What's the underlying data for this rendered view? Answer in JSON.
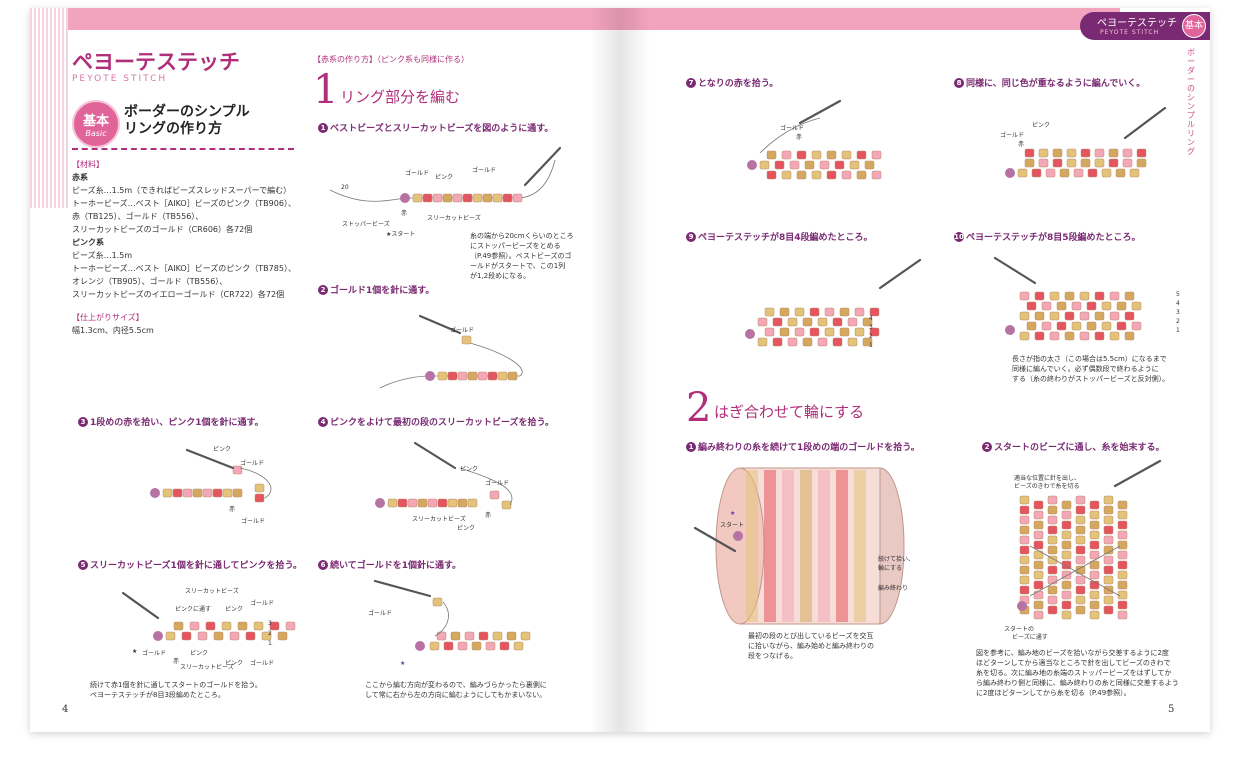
{
  "left": {
    "title_jp": "ペヨーテステッチ",
    "title_en": "PEYOTE STITCH",
    "badge": {
      "main": "基本",
      "sub": "Basic"
    },
    "subtitle_line1": "ボーダーのシンプル",
    "subtitle_line2": "リングの作り方",
    "materials_heading": "【材料】",
    "red_heading": "赤系",
    "red_lines": [
      "ビーズ糸…1.5m（できればビーズスレッドスーパーで編む）",
      "トーホービーズ…ベスト［AIKO］ビーズのピンク（TB906）、",
      "赤（TB125）、ゴールド（TB556）、",
      "スリーカットビーズのゴールド（CR606）各72個"
    ],
    "pink_heading": "ピンク系",
    "pink_lines": [
      "ビーズ糸…1.5m",
      "トーホービーズ…ベスト［AIKO］ビーズのピンク（TB785）、",
      "オレンジ（TB905）、ゴールド（TB556）、",
      "スリーカットビーズのイエローゴールド（CR722）各72個"
    ],
    "size_heading": "【仕上がりサイズ】",
    "size_text": "幅1.3cm、内径5.5cm",
    "page_number": "4",
    "section1": {
      "subhead": "【赤系の作り方】（ピンク系も同様に作る）",
      "number": "1",
      "title": "リング部分を編む"
    },
    "steps": [
      {
        "num": "1",
        "text": "ベストビーズとスリーカットビーズを図のように通す。"
      },
      {
        "num": "2",
        "text": "ゴールド1個を針に通す。"
      },
      {
        "num": "3",
        "text": "1段めの赤を拾い、ピンク1個を針に通す。"
      },
      {
        "num": "4",
        "text": "ピンクをよけて最初の段のスリーカットビーズを拾う。"
      },
      {
        "num": "5",
        "text": "スリーカットビーズ1個を針に通してピンクを拾う。"
      },
      {
        "num": "6",
        "text": "続いてゴールドを1個針に通す。"
      }
    ],
    "step1_labels": {
      "gold": "ゴールド",
      "pink": "ピンク",
      "gold2": "ゴールド",
      "twenty": "20",
      "red": "赤",
      "stopper": "ストッパービーズ",
      "start": "★スタート",
      "threecut": "スリーカットビーズ"
    },
    "step1_note": [
      "糸の端から20cmくらいのところ",
      "にストッパービーズをとめる",
      "（P.49参照）。ベストビーズのゴ",
      "ールドがスタートで、この1列",
      "が1,2段めになる。"
    ],
    "step2_labels": {
      "gold": "ゴールド"
    },
    "step3_labels": {
      "pink": "ピンク",
      "gold": "ゴールド",
      "red": "赤",
      "gold2": "ゴールド"
    },
    "step4_labels": {
      "pink": "ピンク",
      "gold": "ゴールド",
      "threecut": "スリーカットビーズ",
      "pink2": "ピンク",
      "red": "赤"
    },
    "step5_labels": {
      "threecut": "スリーカットビーズ",
      "pink_thread": "ピンクに通す",
      "pink": "ピンク",
      "gold": "ゴールド",
      "red": "赤",
      "pink2": "ピンク",
      "threecut2": "スリーカットビーズ",
      "pink3": "ピンク",
      "gold2": "ゴールド",
      "n3": "3",
      "n2": "2",
      "n1": "1",
      "start": "★"
    },
    "step5_note": [
      "続けて赤1個を針に通してスタートのゴールドを拾う。",
      "ペヨーテステッチが8目3段編めたところ。"
    ],
    "step6_labels": {
      "gold": "ゴールド",
      "star": "★"
    },
    "step6_note": [
      "ここから編む方向が変わるので、編みづらかったら裏側に",
      "して常に右から左の方向に編むようにしてもかまいない。"
    ]
  },
  "right": {
    "tab_jp": "ペヨーテステッチ",
    "tab_en": "PEYOTE STITCH",
    "tab_badge": "基本",
    "vertical_text": "ボーダーのシンプルリング",
    "page_number": "5",
    "steps": [
      {
        "num": "7",
        "text": "となりの赤を拾う。"
      },
      {
        "num": "8",
        "text": "同様に、同じ色が重なるように編んでいく。"
      },
      {
        "num": "9",
        "text": "ペヨーテステッチが8目4段編めたところ。"
      },
      {
        "num": "10",
        "text": "ペヨーテステッチが8目5段編めたところ。"
      }
    ],
    "step7_labels": {
      "gold": "ゴールド",
      "red": "赤"
    },
    "step8_labels": {
      "pink": "ピンク",
      "gold": "ゴールド",
      "red": "赤"
    },
    "step9_labels": {
      "n4": "4",
      "n3": "3",
      "n2": "2",
      "n1": "1"
    },
    "step10_labels": {
      "n5": "5",
      "n4": "4",
      "n3": "3",
      "n2": "2",
      "n1": "1"
    },
    "step10_note": [
      "長さが指の太さ（この場合は5.5cm）になるまで",
      "同様に編んでいく。必ず偶数段で終わるように",
      "する（糸の終わりがストッパービーズと反対側）。"
    ],
    "section2": {
      "number": "2",
      "title": "はぎ合わせて輪にする"
    },
    "steps2": [
      {
        "num": "1",
        "text": "編み終わりの糸を続けて1段めの端のゴールドを拾う。"
      },
      {
        "num": "2",
        "text": "スタートのビーズに通し、糸を始末する。"
      }
    ],
    "s2_1_labels": {
      "start": "スタート",
      "star": "★",
      "cont": "続けて拾い、",
      "cont2": "輪にする",
      "end": "編み終わり"
    },
    "s2_1_note": [
      "最初の段のとび出しているビーズを交互",
      "に拾いながら、編み始めと編み終わりの",
      "段をつなげる。"
    ],
    "s2_2_labels": {
      "top1": "適当な位置に針を出し、",
      "top2": "ビーズのきわで糸を切る",
      "bottom1": "スタートの",
      "bottom2": "ビーズに通す"
    },
    "s2_2_note": [
      "図を参考に、編み地のビーズを拾いながら交差するように2度",
      "ほどターンしてから適当なところで針を出してビーズのきわで",
      "糸を切る。次に編み地の糸端のストッパービーズをはずしてか",
      "ら編み終わり側と同様に、編み終わりの糸と同様に交差するよう",
      "に2度ほどターンしてから糸を切る（P.49参照）。"
    ]
  },
  "colors": {
    "accent": "#b12f7a",
    "band": "#f2a3bd",
    "step": "#7a2a72",
    "red": "#e5555f",
    "pink": "#f4a7b6",
    "gold": "#e3c27a",
    "threecut": "#d4a85e",
    "stopper": "#b572a3"
  }
}
